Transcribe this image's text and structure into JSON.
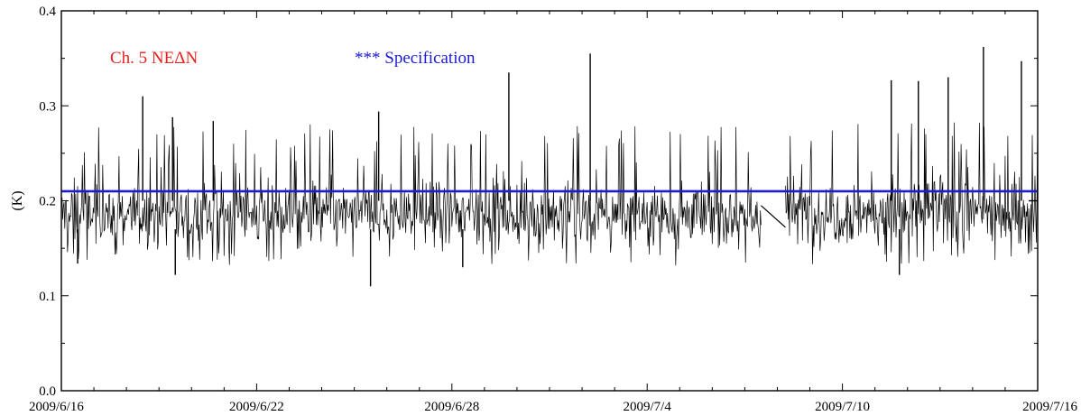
{
  "chart_data": {
    "type": "line",
    "title": "",
    "xlabel": "",
    "ylabel": "(K)",
    "xlim": [
      "2009/6/16",
      "2009/7/16"
    ],
    "ylim": [
      0.0,
      0.4
    ],
    "y_ticks": [
      "0.0",
      "0.1",
      "0.2",
      "0.3",
      "0.4"
    ],
    "x_ticks": [
      {
        "date": "2009/6/16",
        "label": "2009/6/16"
      },
      {
        "date": "2009/6/22",
        "label": "2009/6/22"
      },
      {
        "date": "2009/6/28",
        "label": "2009/6/28"
      },
      {
        "date": "2009/7/4",
        "label": "2009/7/4"
      },
      {
        "date": "2009/7/10",
        "label": "2009/7/10"
      },
      {
        "date": "2009/7/16",
        "label": "2009/7/16"
      }
    ],
    "legend": {
      "placement": "top-left",
      "items": [
        {
          "text": "Ch. 5 NEΔN",
          "color": "#e8201c"
        },
        {
          "text": "*** Specification",
          "color": "#1c1cd8"
        }
      ]
    },
    "series": [
      {
        "color": "#000000",
        "segments": [
          {
            "start": "2009/6/16",
            "end": "2009/7/7 12:00",
            "mean": 0.186,
            "spread": 0.027
          },
          {
            "start": "2009/7/8 06:00",
            "end": "2009/7/16",
            "mean": 0.188,
            "spread": 0.029
          }
        ],
        "gap_connector": [
          {
            "date": "2009/7/7 12:00",
            "value": 0.195
          },
          {
            "date": "2009/7/8 06:00",
            "value": 0.172
          }
        ],
        "peaks": [
          {
            "date": "2009/6/18 12:00",
            "value": 0.31
          },
          {
            "date": "2009/6/19 10:00",
            "value": 0.288
          },
          {
            "date": "2009/6/20 16:00",
            "value": 0.284
          },
          {
            "date": "2009/6/25 18:00",
            "value": 0.294
          },
          {
            "date": "2009/6/29 18:00",
            "value": 0.335
          },
          {
            "date": "2009/7/2 06:00",
            "value": 0.355
          },
          {
            "date": "2009/7/11 12:00",
            "value": 0.327
          },
          {
            "date": "2009/7/12 08:00",
            "value": 0.326
          },
          {
            "date": "2009/7/13 06:00",
            "value": 0.33
          },
          {
            "date": "2009/7/14 08:00",
            "value": 0.362
          },
          {
            "date": "2009/7/15 12:00",
            "value": 0.347
          }
        ],
        "troughs": [
          {
            "date": "2009/6/16 12:00",
            "value": 0.134
          },
          {
            "date": "2009/6/19 12:00",
            "value": 0.122
          },
          {
            "date": "2009/6/25 12:00",
            "value": 0.11
          },
          {
            "date": "2009/6/28 08:00",
            "value": 0.13
          },
          {
            "date": "2009/7/11 18:00",
            "value": 0.122
          }
        ]
      },
      {
        "color": "#1c1cd8",
        "type": "hline",
        "value": 0.21
      }
    ]
  }
}
